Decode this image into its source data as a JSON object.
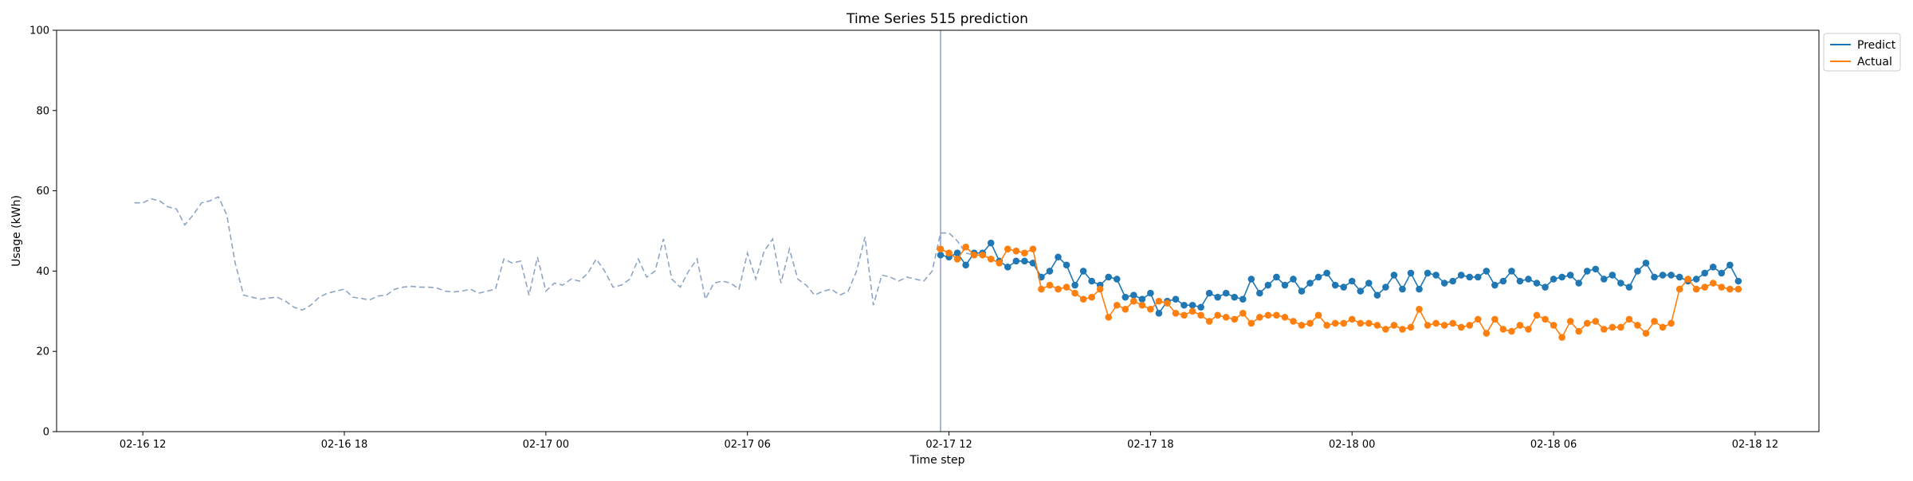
{
  "chart_data": {
    "type": "line",
    "title": "Time Series 515 prediction",
    "xlabel": "Time step",
    "ylabel": "Usage (kWh)",
    "ylim": [
      0,
      100
    ],
    "yticks": [
      0,
      20,
      40,
      60,
      80,
      100
    ],
    "xlim": [
      "2016-02-16 09:26",
      "2016-02-18 13:54"
    ],
    "xticks": [
      {
        "t": "2016-02-16 12:00",
        "label": "02-16 12"
      },
      {
        "t": "2016-02-16 18:00",
        "label": "02-16 18"
      },
      {
        "t": "2016-02-17 00:00",
        "label": "02-17 00"
      },
      {
        "t": "2016-02-17 06:00",
        "label": "02-17 06"
      },
      {
        "t": "2016-02-17 12:00",
        "label": "02-17 12"
      },
      {
        "t": "2016-02-17 18:00",
        "label": "02-17 18"
      },
      {
        "t": "2016-02-18 00:00",
        "label": "02-18 00"
      },
      {
        "t": "2016-02-18 06:00",
        "label": "02-18 06"
      },
      {
        "t": "2016-02-18 12:00",
        "label": "02-18 12"
      }
    ],
    "vline": "2016-02-17 11:45",
    "interval_minutes": 15,
    "history": {
      "start": "2016-02-16 11:45",
      "style": "dashed",
      "color": "#8ea6c4",
      "values": [
        57,
        57,
        58,
        57.5,
        56,
        55.5,
        51.5,
        54,
        57,
        57.5,
        58.5,
        54,
        42,
        34,
        33.5,
        33,
        33.3,
        33.5,
        32.5,
        31,
        30.3,
        31.5,
        33.5,
        34.5,
        35,
        35.5,
        33.5,
        33.2,
        32.8,
        33.8,
        34,
        35.5,
        36,
        36.2,
        36,
        36,
        35.8,
        35,
        34.8,
        35,
        35.5,
        34.5,
        35,
        35.5,
        43,
        42,
        42.5,
        34,
        43.5,
        35,
        37,
        36.5,
        38,
        37.5,
        39.5,
        43,
        40,
        36,
        36.5,
        38,
        43,
        38.5,
        40,
        48,
        38,
        36,
        40,
        43,
        33,
        37,
        37.5,
        37,
        35.5,
        44.5,
        38,
        45,
        48,
        37,
        45.5,
        38,
        36.5,
        34,
        35,
        35.5,
        34,
        35,
        40,
        48.5,
        31.5,
        39,
        38.5,
        37.5,
        38.5,
        38,
        37.5,
        40,
        49.5,
        49.5,
        47.5,
        44.5,
        44
      ]
    },
    "series": [
      {
        "name": "Predict",
        "color": "#1f77b4",
        "start": "2016-02-17 11:45",
        "values": [
          44,
          43.5,
          44.5,
          41.5,
          44.5,
          44.5,
          47,
          42.5,
          41,
          42.5,
          42.5,
          42,
          38.5,
          40,
          43.5,
          41.5,
          36.5,
          40,
          37.5,
          36.5,
          38.5,
          38,
          33.5,
          34,
          33,
          34.5,
          29.5,
          32.5,
          33,
          31.5,
          31.5,
          31,
          34.5,
          33.5,
          34.5,
          33.5,
          33,
          38,
          34.5,
          36.5,
          38.5,
          36.5,
          38,
          35,
          37,
          38.5,
          39.5,
          36.5,
          36,
          37.5,
          35,
          37,
          34,
          36,
          39,
          35.5,
          39.5,
          35.5,
          39.5,
          39,
          37,
          37.5,
          39,
          38.5,
          38.5,
          40,
          36.5,
          37.5,
          40,
          37.5,
          38,
          37,
          36,
          38,
          38.5,
          39,
          37,
          40,
          40.5,
          38,
          39,
          37,
          36,
          40,
          42,
          38.5,
          39,
          39,
          38.5,
          37.5,
          38,
          39.5,
          41,
          39.5,
          41.5,
          37.5
        ]
      },
      {
        "name": "Actual",
        "color": "#ff7f0e",
        "start": "2016-02-17 11:45",
        "values": [
          45.5,
          44.5,
          43,
          46,
          44,
          44,
          43,
          42,
          45.5,
          45,
          44.5,
          45.5,
          35.5,
          36.5,
          35.5,
          36,
          34.5,
          33,
          33.5,
          35.5,
          28.5,
          31.5,
          30.5,
          32.5,
          31.5,
          30.5,
          32.5,
          32,
          29.5,
          29,
          30,
          29,
          27.5,
          29,
          28.5,
          28,
          29.5,
          27,
          28.5,
          29,
          29,
          28.5,
          27.5,
          26.5,
          27,
          29,
          26.5,
          27,
          27,
          28,
          27,
          27,
          26.5,
          25.5,
          26.5,
          25.5,
          26,
          30.5,
          26.5,
          27,
          26.5,
          27,
          26,
          26.5,
          28,
          24.5,
          28,
          25.5,
          25,
          26.5,
          25.5,
          29,
          28,
          26.5,
          23.5,
          27.5,
          25,
          27,
          27.5,
          25.5,
          26,
          26,
          28,
          26.5,
          24.5,
          27.5,
          26,
          27,
          35.5,
          38,
          35.5,
          36,
          37,
          36,
          35.5,
          35.5
        ]
      }
    ],
    "legend": {
      "placement": "upper-right-outside"
    },
    "grid": false
  }
}
